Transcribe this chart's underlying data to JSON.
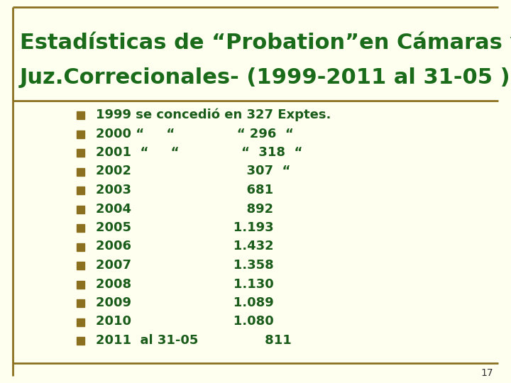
{
  "title_line1": "Estadísticas de “Probation”en Cámaras y",
  "title_line2": "Juz.Correcionales- (1999-2011 al 31-05 )",
  "title_color": "#1a6b1a",
  "bg_color": "#fffff0",
  "border_color": "#8b7020",
  "bullet_color": "#8b7020",
  "text_color": "#1a5c1a",
  "page_number": "17",
  "bullet_items": [
    "1999 se concedió en 327 Exptes.",
    "2000 “     “              “ 296  “",
    "2001  “     “              “  318  “",
    "2002                          307  “",
    "2003                          681",
    "2004                          892",
    "2005                       1.193",
    "2006                       1.432",
    "2007                       1.358",
    "2008                       1.130",
    "2009                       1.089",
    "2010                       1.080",
    "2011  al 31-05               811"
  ]
}
